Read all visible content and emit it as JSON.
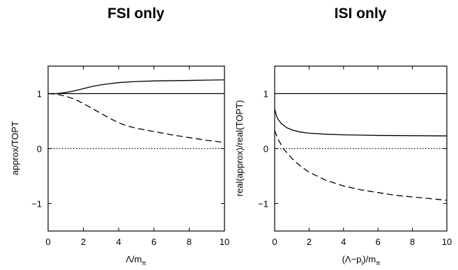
{
  "chart_data": [
    {
      "type": "line",
      "title": "FSI only",
      "xlabel": "Λ/m",
      "xlabel_sub": "π",
      "ylabel": "approx/TOPT",
      "xlim": [
        0,
        10
      ],
      "ylim": [
        -1.5,
        1.5
      ],
      "xticks": [
        0,
        2,
        4,
        6,
        8,
        10
      ],
      "yticks": [
        -1,
        0,
        1
      ],
      "grid": false,
      "series": [
        {
          "style": "solid-thin",
          "x": [
            0,
            10
          ],
          "y": [
            1,
            1
          ]
        },
        {
          "style": "solid",
          "x": [
            0,
            0.5,
            1,
            1.5,
            2,
            2.5,
            3,
            3.5,
            4,
            5,
            6,
            7,
            8,
            9,
            10
          ],
          "y": [
            1.0,
            1.0,
            1.02,
            1.05,
            1.09,
            1.13,
            1.16,
            1.18,
            1.2,
            1.22,
            1.23,
            1.235,
            1.24,
            1.245,
            1.25
          ]
        },
        {
          "style": "dashed",
          "x": [
            0,
            0.5,
            1,
            1.5,
            2,
            2.5,
            3,
            3.5,
            4,
            4.5,
            5,
            6,
            7,
            8,
            9,
            10
          ],
          "y": [
            1.0,
            0.99,
            0.95,
            0.9,
            0.82,
            0.73,
            0.64,
            0.55,
            0.47,
            0.41,
            0.37,
            0.31,
            0.25,
            0.2,
            0.15,
            0.11
          ]
        },
        {
          "style": "dotted",
          "x": [
            0,
            10
          ],
          "y": [
            0,
            0
          ]
        }
      ]
    },
    {
      "type": "line",
      "title": "ISI only",
      "xlabel": "(Λ−p",
      "xlabel_sub": "i",
      "xlabel_mid": ")/m",
      "xlabel_sub2": "π",
      "ylabel": "real(approx)/real(TOPT)",
      "xlim": [
        0,
        10
      ],
      "ylim": [
        -1.5,
        1.5
      ],
      "xticks": [
        0,
        2,
        4,
        6,
        8,
        10
      ],
      "yticks": [
        -1,
        0,
        1
      ],
      "grid": false,
      "series": [
        {
          "style": "solid-thin",
          "x": [
            0,
            10
          ],
          "y": [
            1,
            1
          ]
        },
        {
          "style": "solid",
          "x": [
            0,
            0.1,
            0.2,
            0.4,
            0.7,
            1,
            1.5,
            2,
            3,
            4,
            5,
            6,
            8,
            10
          ],
          "y": [
            0.72,
            0.6,
            0.53,
            0.45,
            0.38,
            0.34,
            0.3,
            0.28,
            0.26,
            0.25,
            0.245,
            0.24,
            0.235,
            0.23
          ]
        },
        {
          "style": "dashed",
          "x": [
            0,
            0.2,
            0.5,
            1,
            1.5,
            2,
            3,
            4,
            5,
            6,
            7,
            8,
            9,
            10
          ],
          "y": [
            0.33,
            0.17,
            0.0,
            -0.18,
            -0.32,
            -0.43,
            -0.58,
            -0.68,
            -0.75,
            -0.8,
            -0.85,
            -0.88,
            -0.91,
            -0.94
          ]
        },
        {
          "style": "dotted",
          "x": [
            0,
            10
          ],
          "y": [
            0,
            0
          ]
        }
      ]
    }
  ]
}
